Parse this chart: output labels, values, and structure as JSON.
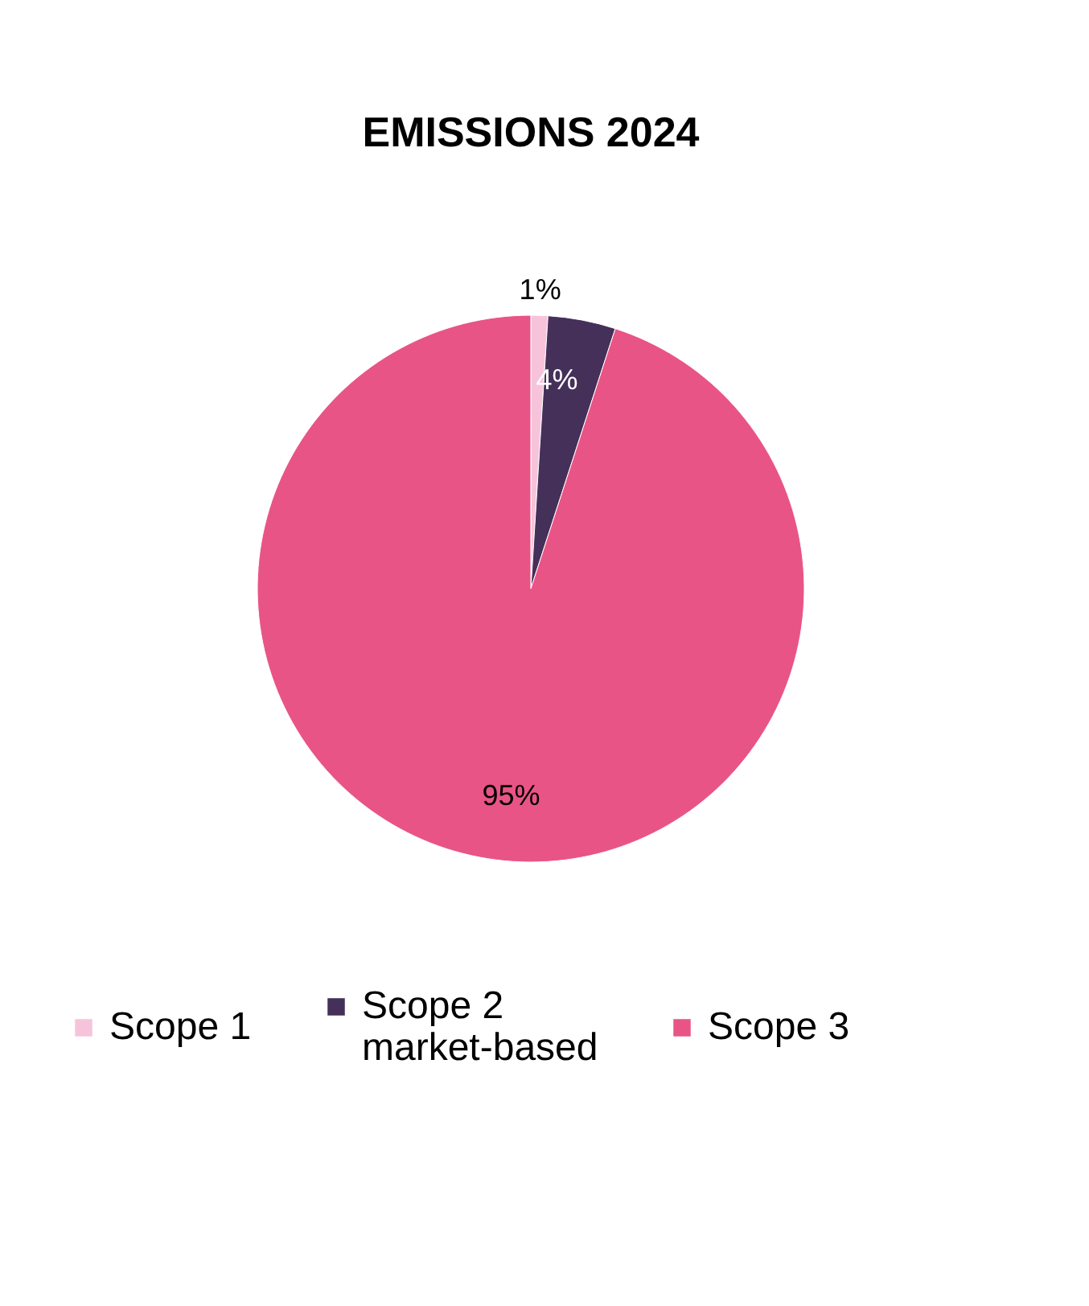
{
  "chart_data": {
    "type": "pie",
    "title": "EMISSIONS 2024",
    "categories": [
      "Scope 1",
      "Scope 2 market-based",
      "Scope 3"
    ],
    "values": [
      1,
      4,
      95
    ],
    "colors": [
      "#f7c3db",
      "#45305a",
      "#e95486"
    ],
    "value_labels": [
      "1%",
      "4%",
      "95%"
    ],
    "legend": "bottom"
  }
}
